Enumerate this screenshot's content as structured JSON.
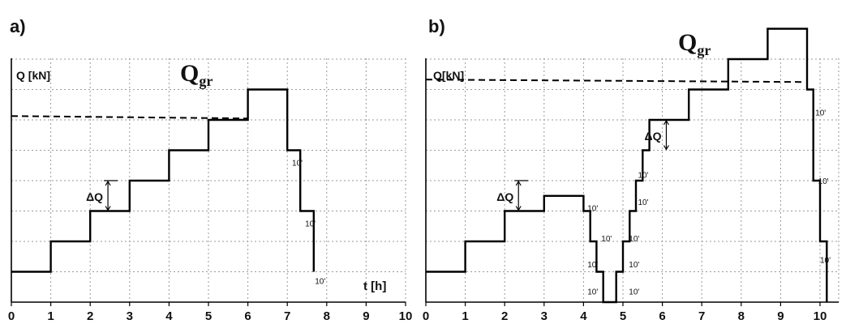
{
  "chart_data": [
    {
      "type": "line",
      "panel_label": "a)",
      "ylabel": "Q [kN]",
      "xlabel": "t [h]",
      "xlim": [
        0,
        10
      ],
      "ylim": [
        0,
        8.3
      ],
      "x_ticks": [
        "0",
        "1",
        "2",
        "3",
        "4",
        "5",
        "6",
        "7",
        "8",
        "9",
        "10"
      ],
      "grid": true,
      "load_limit": {
        "label": "Q",
        "subscript": "gr",
        "value": 6.1
      },
      "delta_label": "ΔQ",
      "delta_annotation": {
        "x": 2.45,
        "y_from": 3,
        "y_to": 4
      },
      "interval_label": "10'",
      "interval_annotations": [
        {
          "x": 7.12,
          "y": 4.5
        },
        {
          "x": 7.45,
          "y": 2.5
        },
        {
          "x": 7.7,
          "y": 0.6
        }
      ],
      "series": [
        {
          "x": [
            0,
            1,
            1,
            2,
            2,
            3,
            3,
            4,
            4,
            5,
            5,
            6,
            6,
            7,
            7,
            7.33,
            7.33,
            7.67,
            7.67
          ],
          "y": [
            1,
            1,
            2,
            2,
            3,
            3,
            4,
            4,
            5,
            5,
            6,
            6,
            7,
            7,
            5,
            5,
            3,
            3,
            1
          ]
        }
      ]
    },
    {
      "type": "line",
      "panel_label": "b)",
      "ylabel": "Q[kN]",
      "xlabel": "",
      "xlim": [
        0,
        10.5
      ],
      "ylim": [
        0,
        8.3
      ],
      "x_ticks": [
        "0",
        "1",
        "2",
        "3",
        "4",
        "5",
        "6",
        "7",
        "8",
        "9",
        "10"
      ],
      "grid": true,
      "load_limit": {
        "label": "Q",
        "subscript": "gr",
        "value": 7.3
      },
      "delta_label": "ΔQ",
      "delta_annotations": [
        {
          "x": 2.35,
          "y_from": 3,
          "y_to": 4
        },
        {
          "x": 6.1,
          "y_from": 5,
          "y_to": 6
        }
      ],
      "interval_label": "10'",
      "interval_annotations": [
        {
          "x": 4.1,
          "y": 3
        },
        {
          "x": 4.45,
          "y": 2
        },
        {
          "x": 4.1,
          "y": 1.15
        },
        {
          "x": 4.1,
          "y": 0.25
        },
        {
          "x": 5.15,
          "y": 0.25
        },
        {
          "x": 5.15,
          "y": 1.15
        },
        {
          "x": 5.15,
          "y": 2
        },
        {
          "x": 5.38,
          "y": 3.2
        },
        {
          "x": 5.38,
          "y": 4.1
        },
        {
          "x": 9.88,
          "y": 6.15
        },
        {
          "x": 9.95,
          "y": 3.9
        },
        {
          "x": 10.0,
          "y": 1.3
        }
      ],
      "series": [
        {
          "x": [
            0,
            1,
            1,
            2,
            2,
            3,
            3,
            4,
            4,
            4.17,
            4.17,
            4.33,
            4.33,
            4.5,
            4.5,
            4.83,
            4.83,
            5.0,
            5.0,
            5.17,
            5.17,
            5.33,
            5.33,
            5.5,
            5.5,
            5.67,
            5.67,
            6.67,
            6.67,
            7.67,
            7.67,
            8.67,
            8.67,
            9.67,
            9.67,
            9.83,
            9.83,
            10.0,
            10.0,
            10.17,
            10.17
          ],
          "y": [
            1,
            1,
            2,
            2,
            3,
            3,
            3.5,
            3.5,
            3,
            3,
            2,
            2,
            1,
            1,
            0,
            0,
            1,
            1,
            2,
            2,
            3,
            3,
            4,
            4,
            5,
            5,
            6,
            6,
            7,
            7,
            8,
            8,
            9,
            9,
            7,
            7,
            4,
            4,
            2,
            2,
            0
          ]
        }
      ]
    }
  ]
}
